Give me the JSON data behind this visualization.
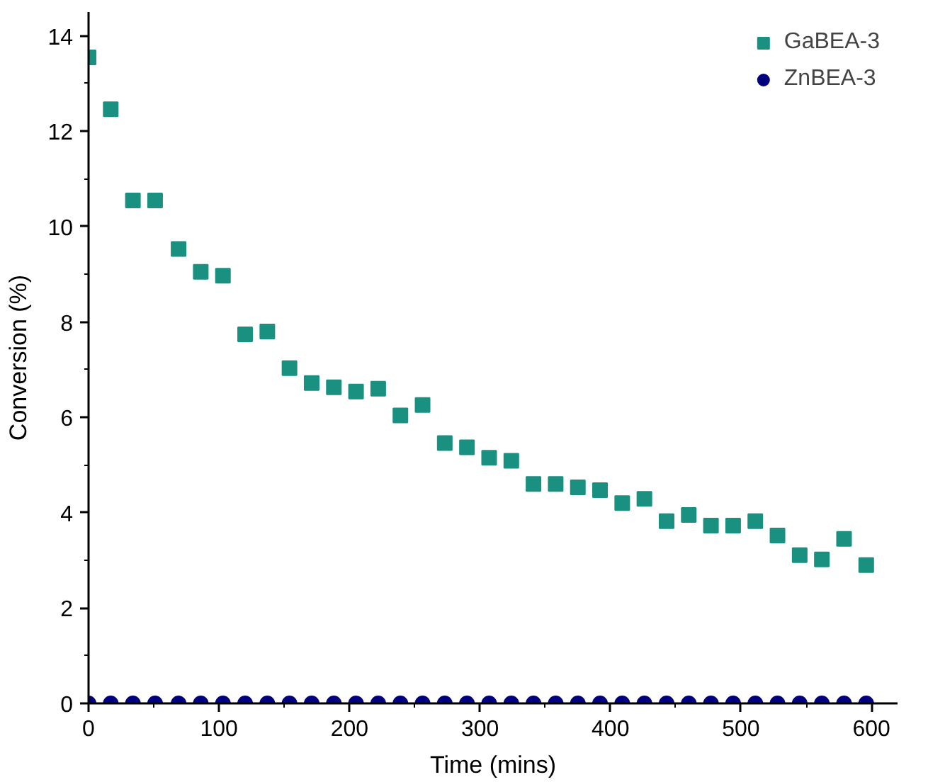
{
  "chart_data": {
    "type": "scatter",
    "xlabel": "Time (mins)",
    "ylabel": "Conversion (%)",
    "x": [
      0,
      17,
      34,
      51,
      69,
      86,
      103,
      120,
      137,
      154,
      171,
      188,
      205,
      222,
      239,
      256,
      273,
      290,
      307,
      324,
      341,
      358,
      375,
      392,
      409,
      426,
      443,
      460,
      477,
      494,
      511,
      528,
      545,
      562,
      579,
      596
    ],
    "series": [
      {
        "name": "GaBEA-3",
        "color": "#1a9080",
        "marker": "square",
        "values": [
          13.55,
          12.46,
          10.55,
          10.55,
          9.53,
          9.05,
          8.97,
          7.74,
          7.8,
          7.03,
          6.72,
          6.63,
          6.54,
          6.6,
          6.04,
          6.26,
          5.46,
          5.37,
          5.15,
          5.09,
          4.6,
          4.6,
          4.53,
          4.47,
          4.2,
          4.29,
          3.82,
          3.95,
          3.73,
          3.73,
          3.82,
          3.52,
          3.11,
          3.02,
          3.45,
          2.9
        ]
      },
      {
        "name": "ZnBEA-3",
        "color": "#00007f",
        "marker": "circle",
        "values": [
          0,
          0,
          0,
          0,
          0,
          0,
          0,
          0,
          0,
          0,
          0,
          0,
          0,
          0,
          0,
          0,
          0,
          0,
          0,
          0,
          0,
          0,
          0,
          0,
          0,
          0,
          0,
          0,
          0,
          0,
          0,
          0,
          0,
          0,
          0,
          0
        ]
      }
    ],
    "xlim": [
      0,
      620
    ],
    "ylim": [
      0,
      14.5
    ],
    "xticks": [
      0,
      100,
      200,
      300,
      400,
      500,
      600
    ],
    "yticks": [
      0,
      2,
      4,
      6,
      8,
      10,
      12,
      14
    ],
    "grid": false,
    "legend": "top right"
  }
}
